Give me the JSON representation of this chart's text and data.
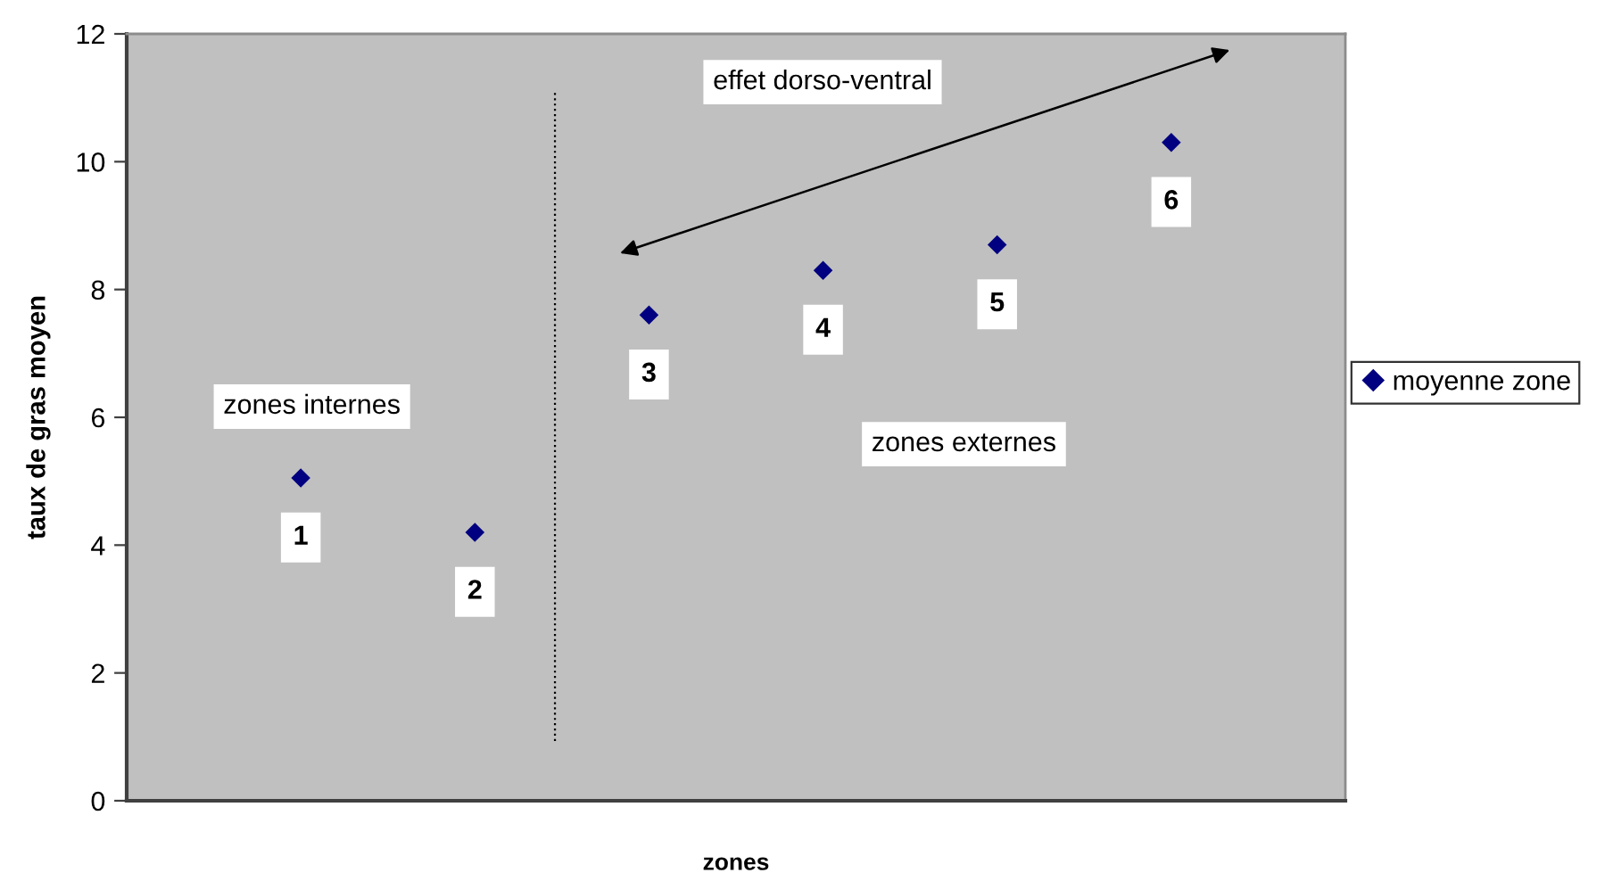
{
  "chart_data": {
    "type": "scatter",
    "xlabel": "zones",
    "ylabel": "taux de gras moyen",
    "categories": [
      null,
      null,
      null,
      null,
      null,
      null
    ],
    "series": [
      {
        "name": "moyenne zone",
        "color": "#000080",
        "values": [
          5.05,
          4.2,
          7.6,
          8.3,
          8.7,
          10.3
        ]
      }
    ],
    "ylim": [
      0,
      12
    ],
    "yticks": [
      0,
      2,
      4,
      6,
      8,
      10,
      12
    ],
    "marker": "diamond",
    "legend": "right",
    "tick_labels": "y",
    "annotations": [
      "zones internes",
      "effet dorso-ventral",
      "zones externes",
      {
        "text": "1",
        "y": 5.05
      },
      {
        "text": "2",
        "y": 4.2
      },
      {
        "text": "3",
        "y": 7.6
      },
      {
        "text": "4",
        "y": 8.3
      },
      {
        "text": "5",
        "y": 8.7
      },
      {
        "text": "6",
        "y": 10.3
      }
    ]
  }
}
